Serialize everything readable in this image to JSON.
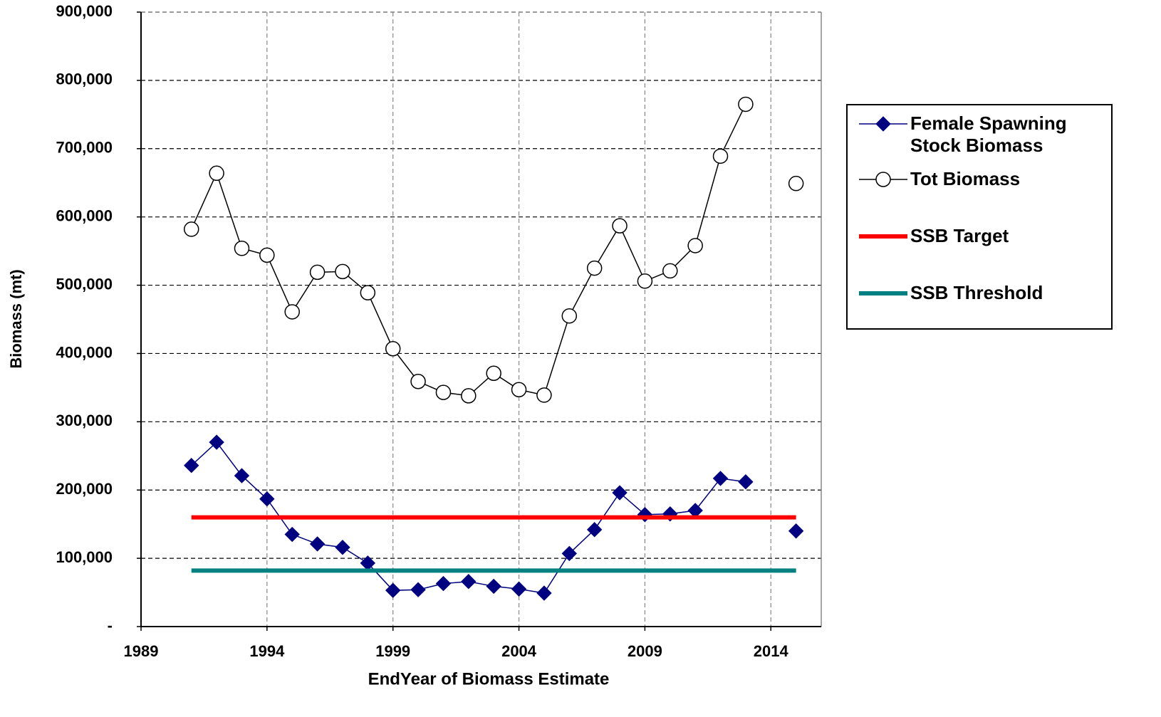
{
  "chart_data": {
    "type": "line",
    "xlabel": "EndYear of Biomass Estimate",
    "ylabel": "Biomass (mt)",
    "x": [
      1991,
      1992,
      1993,
      1994,
      1995,
      1996,
      1997,
      1998,
      1999,
      2000,
      2001,
      2002,
      2003,
      2004,
      2005,
      2006,
      2007,
      2008,
      2009,
      2010,
      2011,
      2012,
      2013,
      2014,
      2015
    ],
    "series": [
      {
        "name": "Female Spawning Stock Biomass",
        "color": "#000080",
        "marker": "diamond",
        "values": [
          236000,
          270000,
          221000,
          187000,
          135000,
          121000,
          116000,
          93000,
          53000,
          54000,
          63000,
          66000,
          59000,
          55000,
          49000,
          107000,
          142000,
          196000,
          164000,
          165000,
          170000,
          217000,
          212000,
          null,
          140000
        ]
      },
      {
        "name": "Tot Biomass",
        "color": "#000000",
        "marker": "circle",
        "values": [
          582000,
          664000,
          554000,
          544000,
          461000,
          519000,
          520000,
          489000,
          407000,
          359000,
          343000,
          338000,
          371000,
          347000,
          339000,
          455000,
          525000,
          587000,
          506000,
          521000,
          558000,
          689000,
          765000,
          null,
          649000
        ]
      },
      {
        "name": "SSB Target",
        "color": "#ff0000",
        "marker": "none",
        "values": [
          160000,
          160000,
          160000,
          160000,
          160000,
          160000,
          160000,
          160000,
          160000,
          160000,
          160000,
          160000,
          160000,
          160000,
          160000,
          160000,
          160000,
          160000,
          160000,
          160000,
          160000,
          160000,
          160000,
          160000,
          160000
        ]
      },
      {
        "name": "SSB Threshold",
        "color": "#008080",
        "marker": "none",
        "values": [
          82000,
          82000,
          82000,
          82000,
          82000,
          82000,
          82000,
          82000,
          82000,
          82000,
          82000,
          82000,
          82000,
          82000,
          82000,
          82000,
          82000,
          82000,
          82000,
          82000,
          82000,
          82000,
          82000,
          82000,
          82000
        ]
      }
    ],
    "xlim": [
      1989,
      2016
    ],
    "xticks": [
      1989,
      1994,
      1999,
      2004,
      2009,
      2014
    ],
    "ylim": [
      0,
      900000
    ],
    "yticks": [
      {
        "value": 0,
        "label": "-"
      },
      {
        "value": 100000,
        "label": "100,000"
      },
      {
        "value": 200000,
        "label": "200,000"
      },
      {
        "value": 300000,
        "label": "300,000"
      },
      {
        "value": 400000,
        "label": "400,000"
      },
      {
        "value": 500000,
        "label": "500,000"
      },
      {
        "value": 600000,
        "label": "600,000"
      },
      {
        "value": 700000,
        "label": "700,000"
      },
      {
        "value": 800000,
        "label": "800,000"
      },
      {
        "value": 900000,
        "label": "900,000"
      }
    ],
    "grid": true,
    "legend": "right"
  }
}
